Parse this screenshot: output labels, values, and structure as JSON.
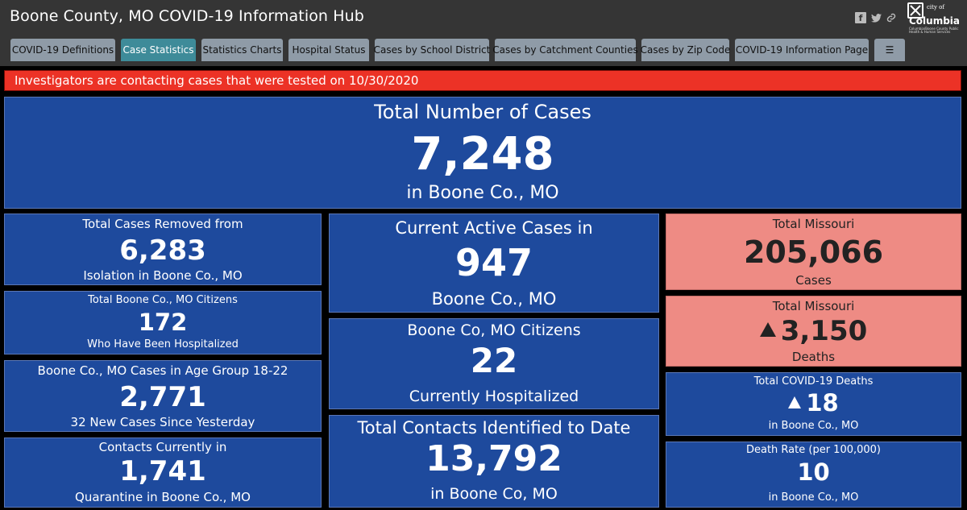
{
  "header": {
    "title": "Boone County, MO COVID-19 Information Hub",
    "logo": {
      "city_of": "city of",
      "name": "Columbia",
      "subtitle": "Columbia/Boone County Public Health & Human Services"
    }
  },
  "social_icons": [
    "facebook-icon",
    "twitter-icon",
    "link-icon"
  ],
  "tabs": [
    {
      "label": "COVID-19 Definitions"
    },
    {
      "label": "Case Statistics"
    },
    {
      "label": "Statistics Charts"
    },
    {
      "label": "Hospital Status"
    },
    {
      "label": "Cases by School District"
    },
    {
      "label": "Cases by Catchment Counties"
    },
    {
      "label": "Cases by Zip Code"
    },
    {
      "label": "COVID-19 Information Page"
    },
    {
      "label": "☰"
    }
  ],
  "alert": "Investigators are contacting cases that were tested on 10/30/2020",
  "colors": {
    "card_blue": "#1e4a9d",
    "card_red": "#ee8b84",
    "alert": "#ec3226",
    "active_tab": "#3e8b99"
  },
  "cards": {
    "total_cases": {
      "top": "Total Number of Cases",
      "value": "7,248",
      "bottom": "in Boone Co., MO"
    },
    "removed": {
      "top": "Total Cases Removed from",
      "value": "6,283",
      "bottom": "Isolation in Boone Co., MO"
    },
    "hospitalized_total": {
      "top": "Total Boone Co., MO Citizens",
      "value": "172",
      "bottom": "Who Have Been Hospitalized"
    },
    "age_group": {
      "top": "Boone Co., MO Cases in Age Group 18-22",
      "value": "2,771",
      "bottom": "32 New Cases Since Yesterday"
    },
    "quarantine": {
      "top": "Contacts Currently in",
      "value": "1,741",
      "bottom": "Quarantine in Boone Co., MO"
    },
    "active": {
      "top": "Current Active Cases in",
      "value": "947",
      "bottom": "Boone Co., MO"
    },
    "current_hosp": {
      "top": "Boone Co, MO Citizens",
      "value": "22",
      "bottom": "Currently Hospitalized"
    },
    "contacts": {
      "top": "Total Contacts Identified to Date",
      "value": "13,792",
      "bottom": "in Boone Co, MO"
    },
    "mo_cases": {
      "top": "Total Missouri",
      "value": "205,066",
      "bottom": "Cases"
    },
    "mo_deaths": {
      "top": "Total Missouri",
      "value": "3,150",
      "bottom": "Deaths"
    },
    "county_deaths": {
      "top": "Total COVID-19 Deaths",
      "value": "18",
      "bottom": "in Boone Co., MO"
    },
    "death_rate": {
      "top": "Death Rate (per 100,000)",
      "value": "10",
      "bottom": "in Boone Co., MO"
    }
  }
}
